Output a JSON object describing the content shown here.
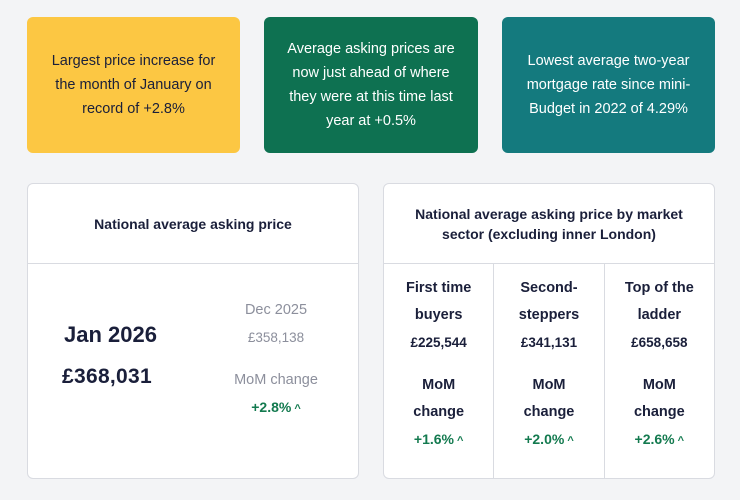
{
  "stats": [
    {
      "text": "Largest price increase for the month of January on record of +2.8%",
      "color": "#fcc743"
    },
    {
      "text": "Average asking prices are now just ahead of where they were at this time last year at +0.5%",
      "color": "#0e7151"
    },
    {
      "text": "Lowest average two-year mortgage rate since mini-Budget in 2022 of 4.29%",
      "color": "#147a7e"
    }
  ],
  "national": {
    "title": "National average asking price",
    "month": "Jan 2026",
    "price": "£368,031",
    "prev_month": "Dec 2025",
    "prev_price": "£358,138",
    "mom_label": "MoM change",
    "mom_value": "+2.8%"
  },
  "sectors": {
    "title": "National average asking price by market sector (excluding inner London)",
    "items": [
      {
        "name": "First time buyers",
        "price": "£225,544",
        "mom_label": "MoM change",
        "mom_value": "+1.6%"
      },
      {
        "name": "Second-steppers",
        "price": "£341,131",
        "mom_label": "MoM change",
        "mom_value": "+2.0%"
      },
      {
        "name": "Top of the ladder",
        "price": "£658,658",
        "mom_label": "MoM change",
        "mom_value": "+2.6%"
      }
    ]
  },
  "icons": {
    "increase": "chevron-up-icon",
    "positive_color": "#137a4f"
  }
}
